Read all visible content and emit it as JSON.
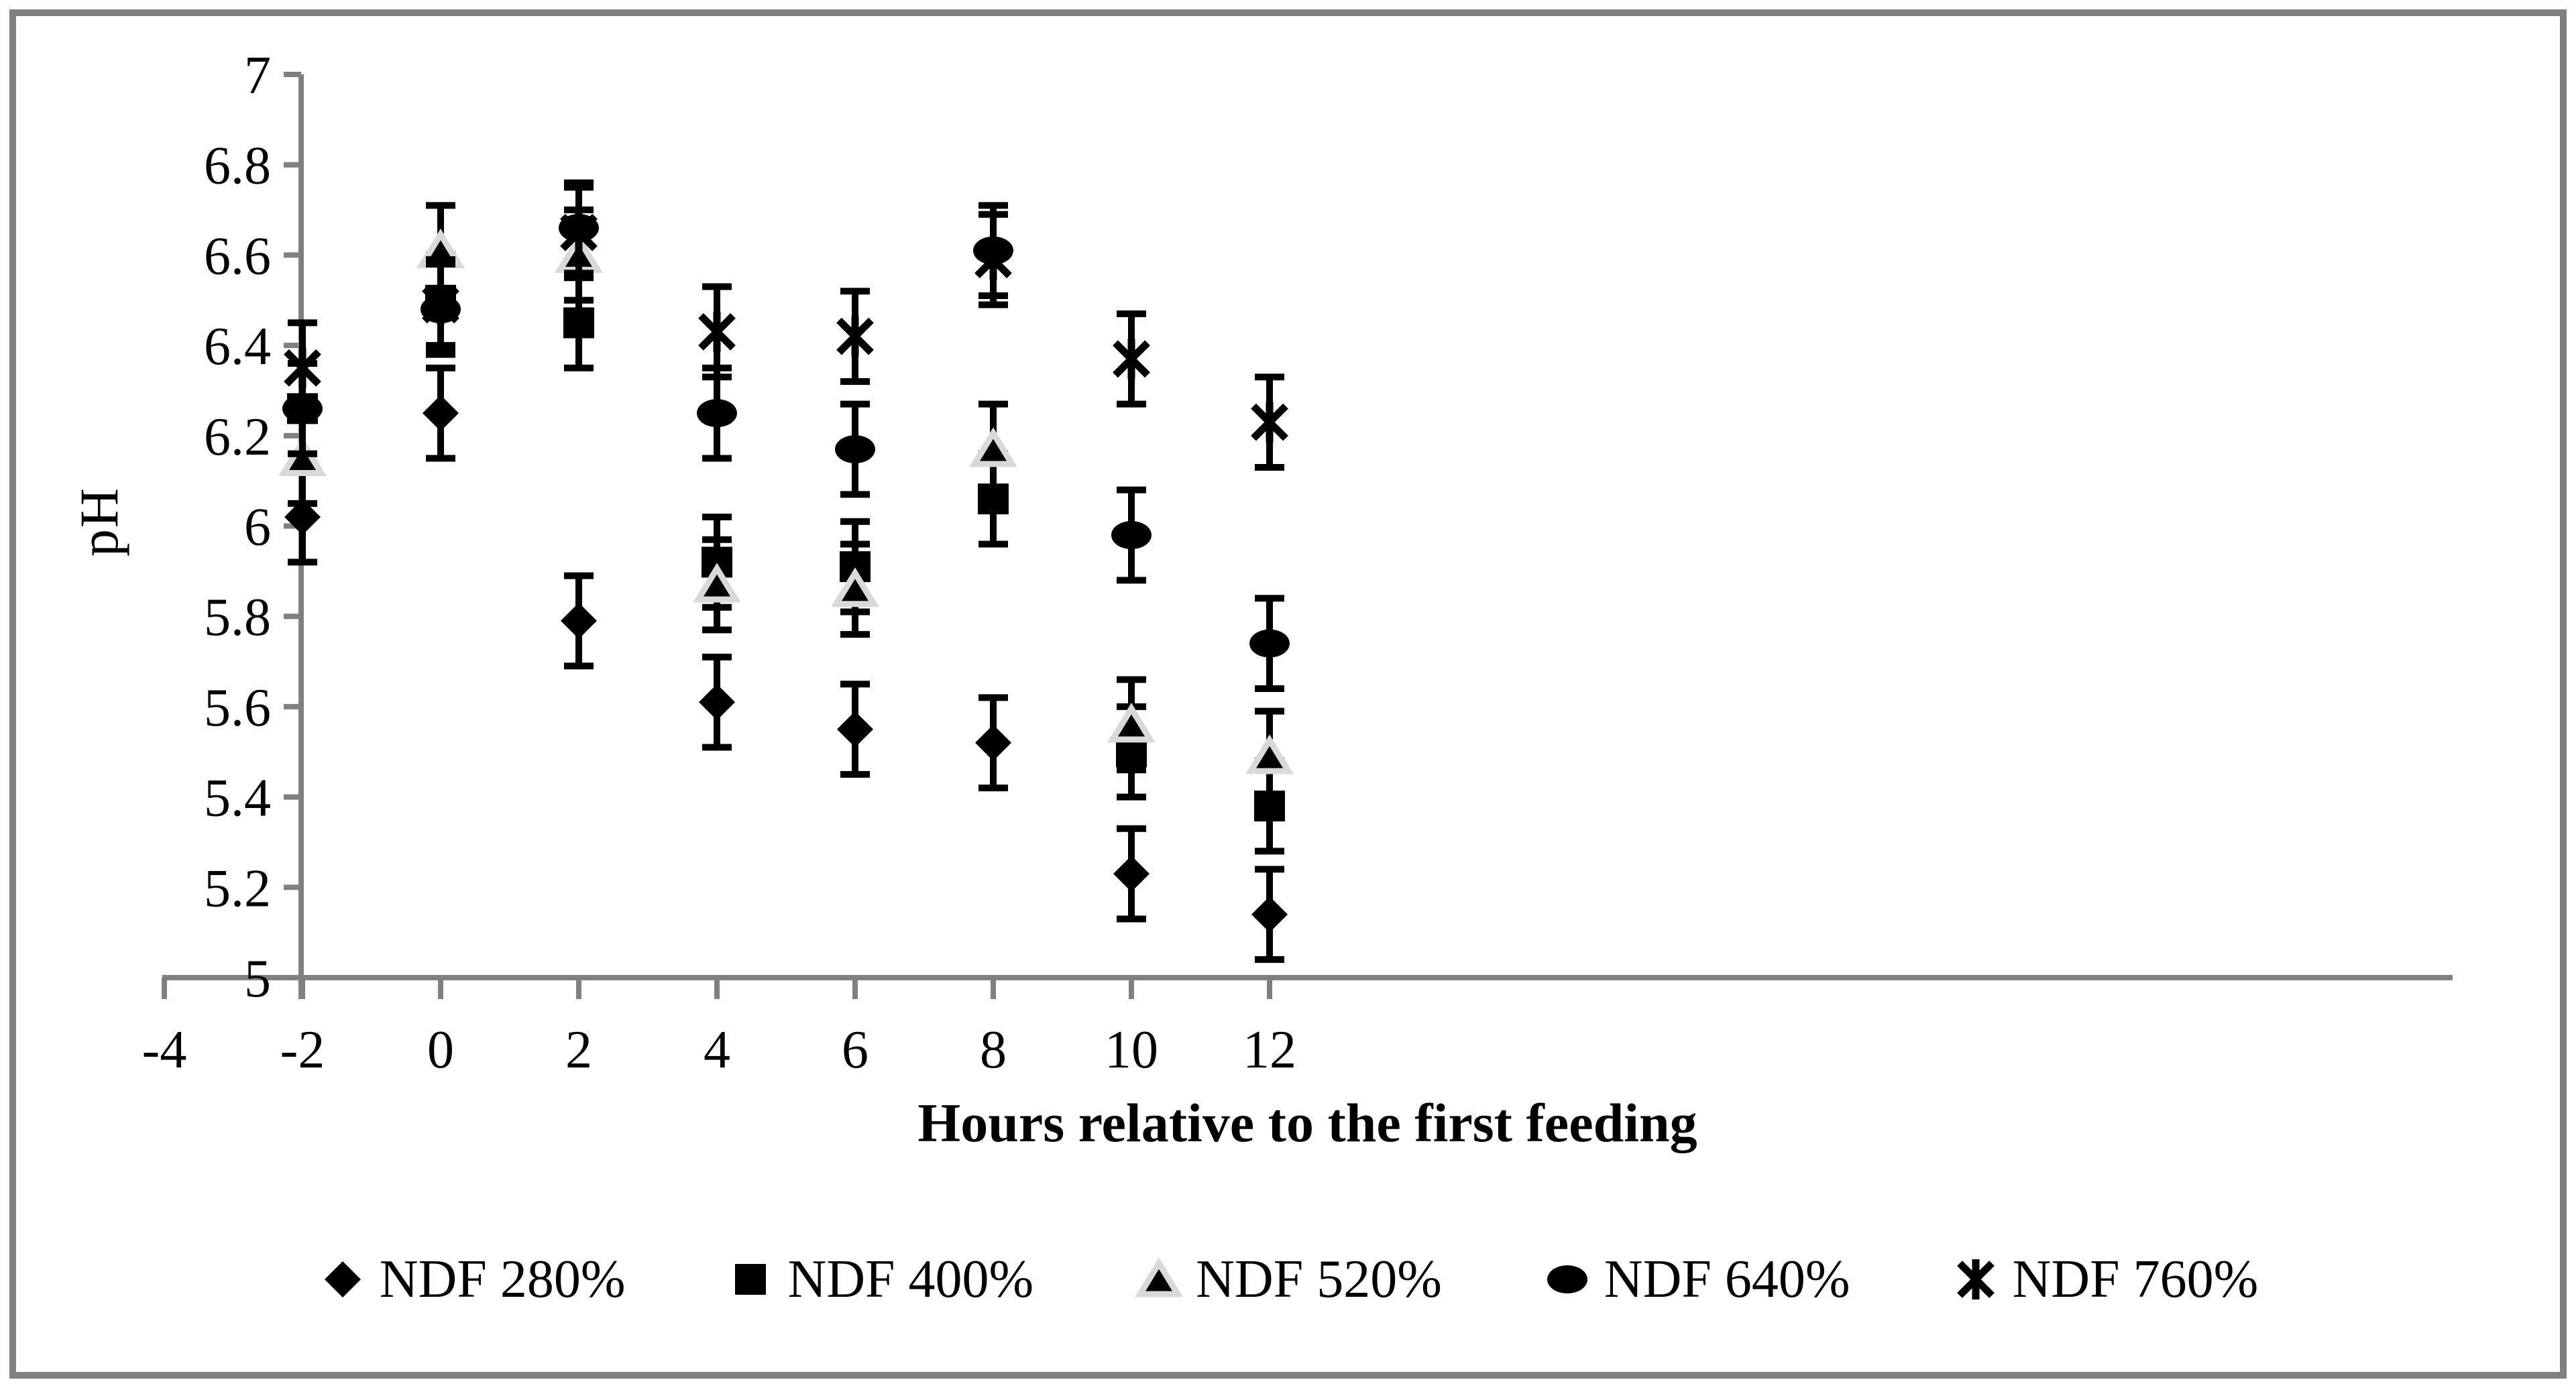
{
  "chart_data": {
    "type": "scatter",
    "xlabel": "Hours relative to the first feeding",
    "ylabel": "pH",
    "x": [
      -2,
      0,
      2,
      4,
      6,
      8,
      10,
      12
    ],
    "xlim": [
      -4,
      12.6
    ],
    "ylim": [
      5,
      7
    ],
    "grid": "off",
    "legend_position": "bottom",
    "error_bar_half_width": 0.1,
    "xticks": {
      "values": [
        -4,
        -2,
        0,
        2,
        4,
        6,
        8,
        10,
        12
      ],
      "labels": [
        "-4",
        "-2",
        "0",
        "2",
        "4",
        "6",
        "8",
        "10",
        "12"
      ]
    },
    "yticks": {
      "values": [
        7,
        6.8,
        6.6,
        6.4,
        6.2,
        6,
        5.8,
        5.6,
        5.4,
        5.2,
        5
      ],
      "labels": [
        "7",
        "6.8",
        "6.6",
        "6.4",
        "6.2",
        "6",
        "5.8",
        "5.6",
        "5.4",
        "5.2",
        "5"
      ]
    },
    "series": [
      {
        "name": "NDF 280%",
        "marker": "diamond",
        "values": [
          6.02,
          6.25,
          5.79,
          5.61,
          5.55,
          5.52,
          5.23,
          5.14
        ]
      },
      {
        "name": "NDF 400%",
        "marker": "square",
        "values": [
          6.26,
          6.5,
          6.45,
          5.92,
          5.91,
          6.06,
          5.5,
          5.38
        ]
      },
      {
        "name": "NDF 520%",
        "marker": "triangle",
        "values": [
          6.15,
          6.61,
          6.6,
          5.87,
          5.86,
          6.17,
          5.56,
          5.49
        ]
      },
      {
        "name": "NDF 640%",
        "marker": "circle",
        "values": [
          6.26,
          6.48,
          6.66,
          6.25,
          6.17,
          6.61,
          5.98,
          5.74
        ]
      },
      {
        "name": "NDF 760%",
        "marker": "star",
        "values": [
          6.35,
          6.49,
          6.65,
          6.43,
          6.42,
          6.59,
          6.37,
          6.23
        ]
      }
    ],
    "colors": {
      "marker": "#000000",
      "triangle_outline": "#d9d9d9",
      "axis": "#808080",
      "frame": "#808080",
      "text": "#000000"
    }
  }
}
